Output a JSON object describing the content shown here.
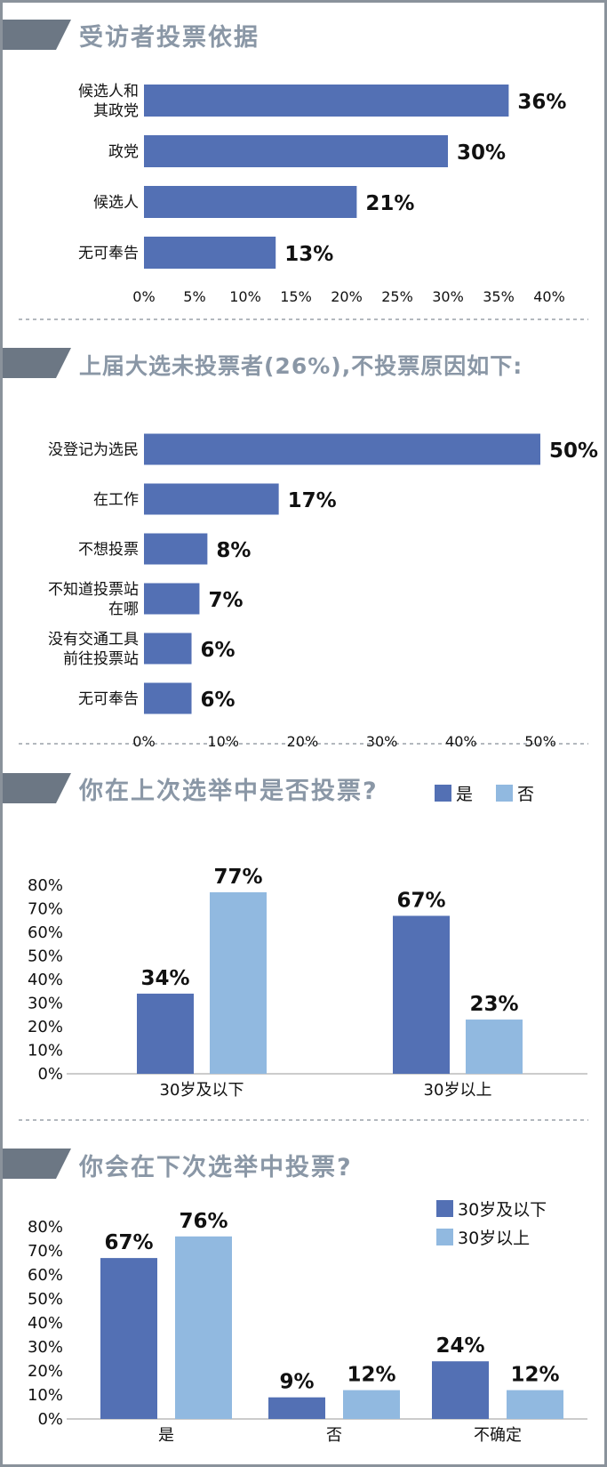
{
  "colors": {
    "primary": "#5370b4",
    "secondary": "#91b9e0",
    "banner": "#6c7784",
    "title_text": "#8a97a6",
    "frame": "#8a929b"
  },
  "chart_data": [
    {
      "type": "bar",
      "orientation": "horizontal",
      "title": "受访者投票依据",
      "categories": [
        "候选人和\n其政党",
        "政党",
        "候选人",
        "无可奉告"
      ],
      "values": [
        36,
        30,
        21,
        13
      ],
      "value_labels": [
        "36%",
        "30%",
        "21%",
        "13%"
      ],
      "xlim": [
        0,
        40
      ],
      "ticks": [
        "0%",
        "5%",
        "10%",
        "15%",
        "20%",
        "25%",
        "30%",
        "35%",
        "40%"
      ]
    },
    {
      "type": "bar",
      "orientation": "horizontal",
      "title": "上届大选未投票者(26%),不投票原因如下:",
      "categories": [
        "没登记为选民",
        "在工作",
        "不想投票",
        "不知道投票站\n在哪",
        "没有交通工具\n前往投票站",
        "无可奉告"
      ],
      "values": [
        50,
        17,
        8,
        7,
        6,
        6
      ],
      "value_labels": [
        "50%",
        "17%",
        "8%",
        "7%",
        "6%",
        "6%"
      ],
      "xlim": [
        0,
        50
      ],
      "ticks": [
        "0%",
        "10%",
        "20%",
        "30%",
        "40%",
        "50%"
      ]
    },
    {
      "type": "bar",
      "orientation": "vertical",
      "title": "你在上次选举中是否投票?",
      "categories": [
        "30岁及以下",
        "30岁以上"
      ],
      "series": [
        {
          "name": "是",
          "values": [
            34,
            67
          ],
          "value_labels": [
            "34%",
            "67%"
          ]
        },
        {
          "name": "否",
          "values": [
            77,
            23
          ],
          "value_labels": [
            "77%",
            "23%"
          ]
        }
      ],
      "ylim": [
        0,
        80
      ],
      "ticks": [
        "0%",
        "10%",
        "20%",
        "30%",
        "40%",
        "50%",
        "60%",
        "70%",
        "80%"
      ],
      "legend": "top-right"
    },
    {
      "type": "bar",
      "orientation": "vertical",
      "title": "你会在下次选举中投票?",
      "categories": [
        "是",
        "否",
        "不确定"
      ],
      "series": [
        {
          "name": "30岁及以下",
          "values": [
            67,
            9,
            24
          ],
          "value_labels": [
            "67%",
            "9%",
            "24%"
          ]
        },
        {
          "name": "30岁以上",
          "values": [
            76,
            12,
            12
          ],
          "value_labels": [
            "76%",
            "12%",
            "12%"
          ]
        }
      ],
      "ylim": [
        0,
        80
      ],
      "ticks": [
        "0%",
        "10%",
        "20%",
        "30%",
        "40%",
        "50%",
        "60%",
        "70%",
        "80%"
      ],
      "legend": "top-right"
    }
  ]
}
